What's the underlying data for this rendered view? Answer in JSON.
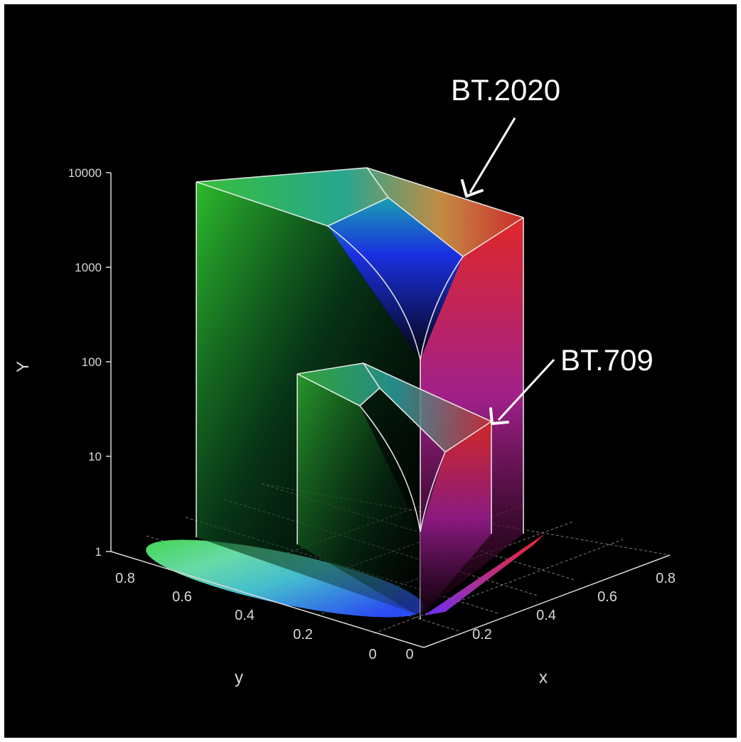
{
  "chart_data": {
    "type": "3d-volume",
    "volumes": [
      {
        "name": "BT.2020",
        "label": "BT.2020",
        "Y_peak": 10000,
        "color_stops": [
          "#2cd32c",
          "#00c8c8",
          "#1a2cff",
          "#ff2a2a"
        ]
      },
      {
        "name": "BT.709",
        "label": "BT.709",
        "Y_peak": 100,
        "color_stops": [
          "#3bbf3b",
          "#00b0c0",
          "#2030ff",
          "#ff3030"
        ]
      }
    ],
    "z_axis": {
      "label": "Y",
      "scale": "log",
      "ticks": [
        "10000",
        "1000",
        "100",
        "10",
        "1"
      ],
      "range": [
        1,
        10000
      ]
    },
    "y_axis": {
      "label": "y",
      "ticks": [
        "0.8",
        "0.6",
        "0.4",
        "0.2",
        "0"
      ],
      "range": [
        0,
        0.85
      ]
    },
    "x_axis": {
      "label": "x",
      "ticks": [
        "0",
        "0.2",
        "0.4",
        "0.6",
        "0.8"
      ],
      "range": [
        0,
        0.85
      ]
    },
    "floor_grid": true
  }
}
